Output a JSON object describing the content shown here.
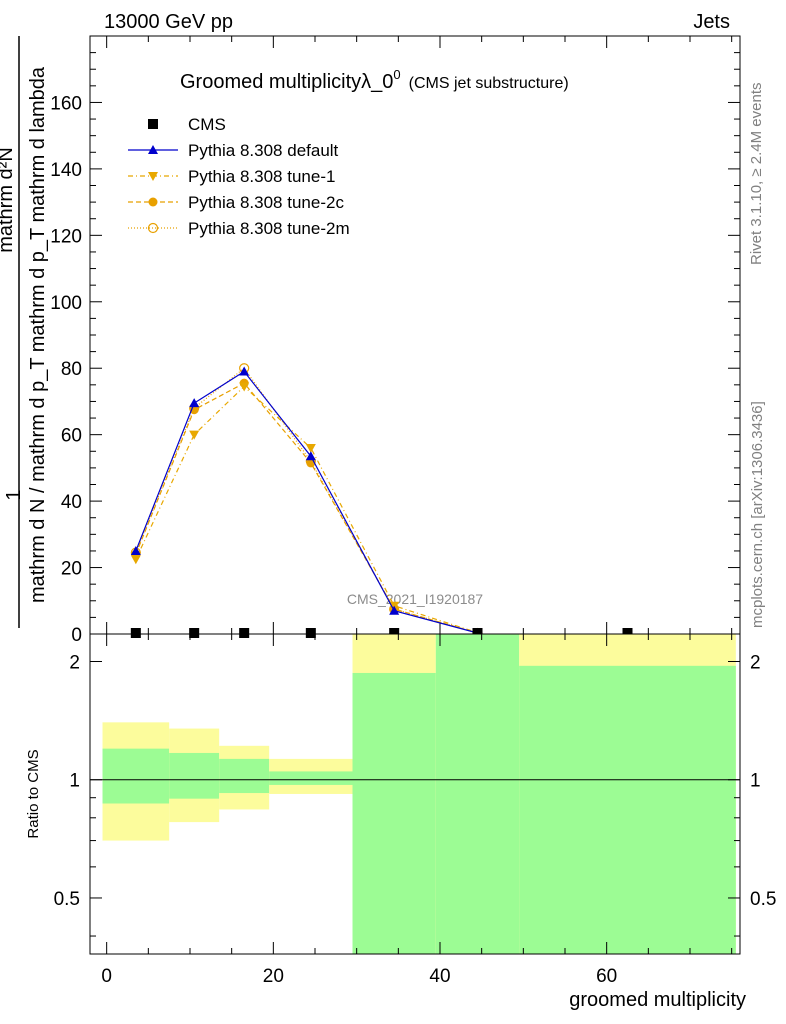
{
  "header": {
    "energy": "13000 GeV pp",
    "category": "Jets",
    "title_main": "Groomed multiplicity",
    "title_lambda": "λ_0",
    "title_sup": "0",
    "title_sub": "(CMS jet substructure)",
    "rivet": "Rivet 3.1.10, ≥ 2.4M events",
    "mcplots": "mcplots.cern.ch [arXiv:1306.3436]",
    "watermark": "CMS_2021_I1920187"
  },
  "legend": [
    {
      "label": "CMS",
      "color": "#000000",
      "marker": "square"
    },
    {
      "label": "Pythia 8.308 default",
      "color": "#0000cc",
      "marker": "triangle-up"
    },
    {
      "label": "Pythia 8.308 tune-1",
      "color": "#e8a800",
      "marker": "triangle-down"
    },
    {
      "label": "Pythia 8.308 tune-2c",
      "color": "#e8a000",
      "marker": "circle"
    },
    {
      "label": "Pythia 8.308 tune-2m",
      "color": "#e8a000",
      "marker": "open-circle"
    }
  ],
  "chart_data": [
    {
      "type": "line",
      "panel": "main",
      "ylabel_top": "1",
      "ylabel_denominator": "mathrm d N / mathrm d p_T mathrm d p_T mathrm d lambda",
      "ylabel_numerator": "mathrm d²N",
      "ylim": [
        0,
        180
      ],
      "xlim": [
        -2,
        76
      ],
      "yticks": [
        0,
        20,
        40,
        60,
        80,
        100,
        120,
        140,
        160
      ],
      "cms_points": [
        {
          "x": 3.5,
          "y": 0
        },
        {
          "x": 10.5,
          "y": 0
        },
        {
          "x": 16.5,
          "y": 0
        },
        {
          "x": 24.5,
          "y": 0
        },
        {
          "x": 34.5,
          "y": 0
        },
        {
          "x": 44.5,
          "y": 0
        },
        {
          "x": 62.5,
          "y": 0
        }
      ],
      "series": [
        {
          "name": "Pythia 8.308 default",
          "x": [
            3.5,
            10.5,
            16.5,
            24.5,
            34.5,
            44.5
          ],
          "values": [
            25,
            69.5,
            79,
            53.5,
            7,
            0.3
          ]
        },
        {
          "name": "Pythia 8.308 tune-1",
          "x": [
            3.5,
            10.5,
            16.5,
            24.5,
            34.5,
            44.5
          ],
          "values": [
            22.5,
            60,
            74.5,
            56,
            8.5,
            0.4
          ]
        },
        {
          "name": "Pythia 8.308 tune-2c",
          "x": [
            3.5,
            10.5,
            16.5,
            24.5,
            34.5,
            44.5
          ],
          "values": [
            24,
            67.5,
            75.5,
            51.5,
            7.5,
            0.3
          ]
        },
        {
          "name": "Pythia 8.308 tune-2m",
          "x": [
            3.5,
            10.5,
            16.5,
            24.5,
            34.5,
            44.5
          ],
          "values": [
            24.5,
            68,
            80,
            52,
            7.5,
            0.3
          ]
        }
      ]
    },
    {
      "type": "area",
      "panel": "ratio",
      "ylabel": "Ratio to CMS",
      "xlabel": "groomed multiplicity",
      "scale": "log",
      "ylim": [
        0.36,
        2.35
      ],
      "xlim": [
        -2,
        76
      ],
      "yticks": [
        0.5,
        1,
        2
      ],
      "xticks": [
        0,
        20,
        40,
        60
      ],
      "bins": [
        {
          "lo": -0.5,
          "hi": 7.5,
          "inner": [
            0.87,
            1.2
          ],
          "outer": [
            0.7,
            1.4
          ]
        },
        {
          "lo": 7.5,
          "hi": 13.5,
          "inner": [
            0.895,
            1.17
          ],
          "outer": [
            0.78,
            1.35
          ]
        },
        {
          "lo": 13.5,
          "hi": 19.5,
          "inner": [
            0.925,
            1.13
          ],
          "outer": [
            0.84,
            1.22
          ]
        },
        {
          "lo": 19.5,
          "hi": 29.5,
          "inner": [
            0.97,
            1.05
          ],
          "outer": [
            0.92,
            1.13
          ]
        },
        {
          "lo": 29.5,
          "hi": 39.5,
          "inner": [
            0.36,
            1.87
          ],
          "outer": [
            0.36,
            2.35
          ]
        },
        {
          "lo": 39.5,
          "hi": 49.5,
          "inner": [
            0.36,
            2.35
          ],
          "outer": [
            0.36,
            2.35
          ]
        },
        {
          "lo": 49.5,
          "hi": 75.5,
          "inner": [
            0.36,
            1.95
          ],
          "outer": [
            0.36,
            2.35
          ]
        }
      ],
      "colors": {
        "inner": "#9cfc94",
        "outer": "#fcfc9c"
      }
    }
  ]
}
